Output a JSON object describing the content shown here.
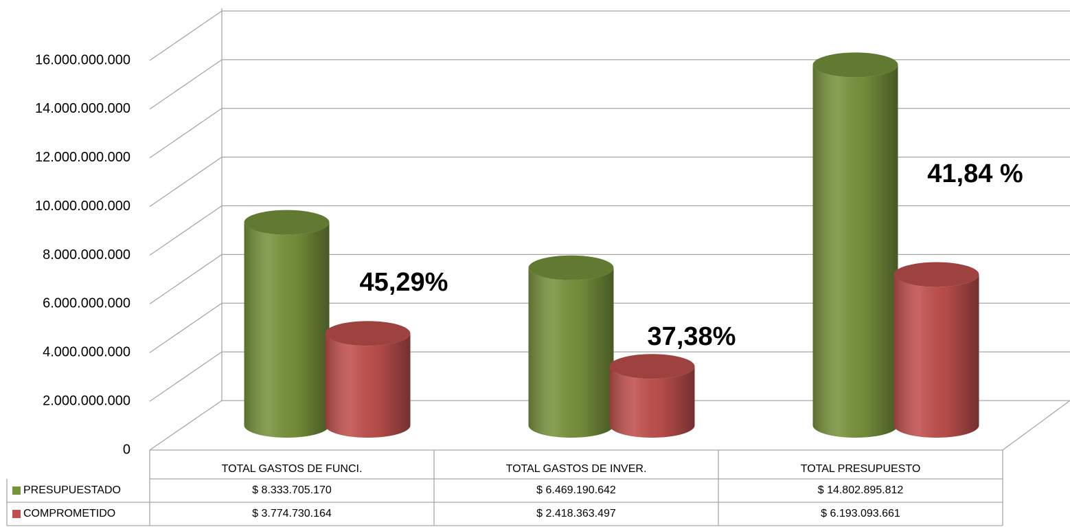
{
  "chart_data": {
    "type": "cylinder3d",
    "categories": [
      "TOTAL GASTOS DE FUNCI.",
      "TOTAL GASTOS DE INVER.",
      "TOTAL PRESUPUESTO"
    ],
    "series": [
      {
        "name": "PRESUPUESTADO",
        "color": "#77933c",
        "values": [
          8333705170,
          6469190642,
          14802895812
        ],
        "value_labels": [
          "$ 8.333.705.170",
          "$ 6.469.190.642",
          "$ 14.802.895.812"
        ]
      },
      {
        "name": "COMPROMETIDO",
        "color": "#c0504d",
        "values": [
          3774730164,
          2418363497,
          6193093661
        ],
        "value_labels": [
          "$ 3.774.730.164",
          "$ 2.418.363.497",
          "$ 6.193.093.661"
        ]
      }
    ],
    "annotations": [
      "45,29%",
      "37,38%",
      "41,84 %"
    ],
    "ylim": [
      0,
      16000000000
    ],
    "yticks": [
      0,
      {
        "value": 2000000000,
        "label": "2.000.000.000"
      },
      {
        "value": 4000000000,
        "label": "4.000.000.000"
      },
      {
        "value": 6000000000,
        "label": "6.000.000.000"
      },
      {
        "value": 8000000000,
        "label": "8.000.000.000"
      },
      {
        "value": 10000000000,
        "label": "10.000.000.000"
      },
      {
        "value": 12000000000,
        "label": "12.000.000.000"
      },
      {
        "value": 14000000000,
        "label": "14.000.000.000"
      },
      {
        "value": 16000000000,
        "label": "16.000.000.000"
      }
    ],
    "grid": true,
    "legend": "table"
  }
}
